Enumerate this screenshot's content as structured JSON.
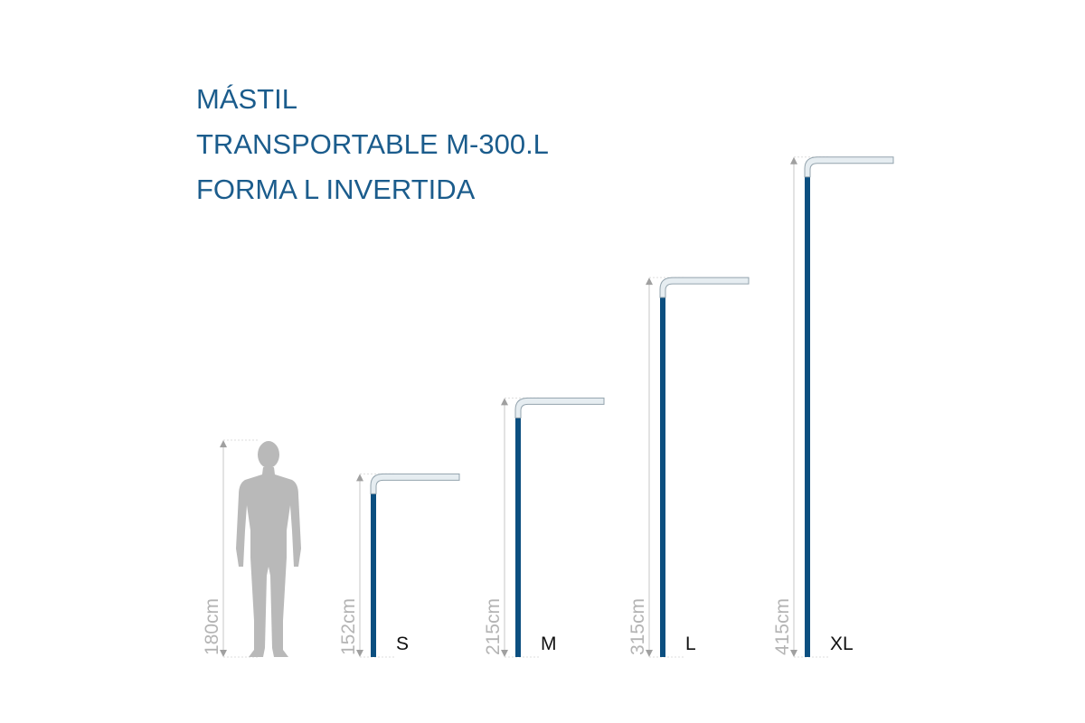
{
  "title": [
    "MÁSTIL",
    "TRANSPORTABLE M-300.L",
    "FORMA L INVERTIDA"
  ],
  "reference": {
    "height": 180,
    "height_label": "180cm"
  },
  "masts": [
    {
      "size": "S",
      "height": 152,
      "height_label": "152cm"
    },
    {
      "size": "M",
      "height": 215,
      "height_label": "215cm"
    },
    {
      "size": "L",
      "height": 315,
      "height_label": "315cm"
    },
    {
      "size": "XL",
      "height": 415,
      "height_label": "415cm"
    }
  ]
}
